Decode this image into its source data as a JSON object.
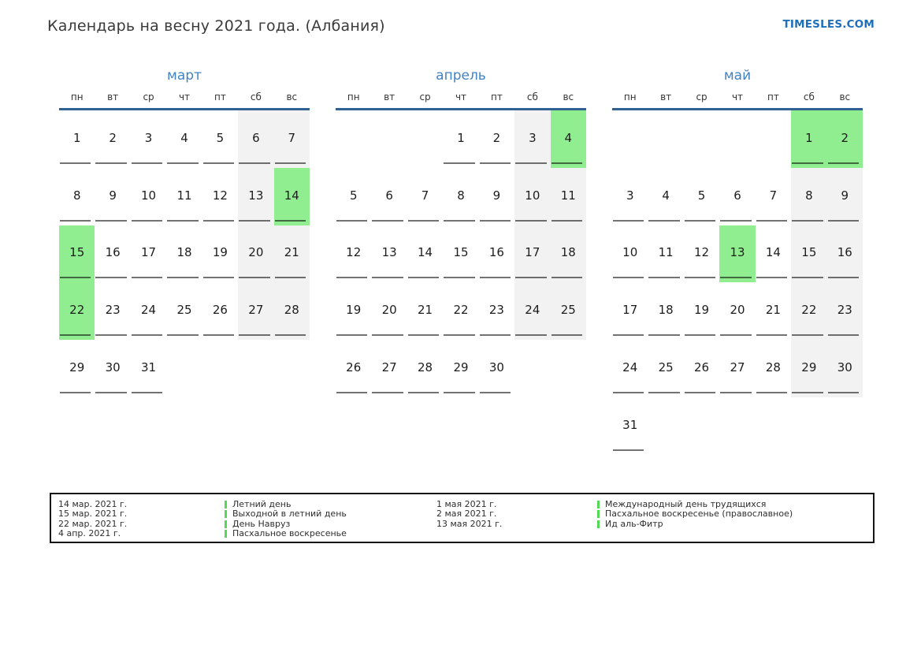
{
  "header": {
    "title": "Календарь на весну 2021 года. (Албания)",
    "site": "TIMESLES.COM"
  },
  "colors": {
    "holiday_green": "#90ee90",
    "weekend_gray": "#f2f2f2",
    "month_title_blue": "#4183c4",
    "header_line_blue": "#2f6292",
    "site_link_blue": "#1d6fbc",
    "legend_bar_green": "#55d855"
  },
  "weekdays": [
    "пн",
    "вт",
    "ср",
    "чт",
    "пт",
    "сб",
    "вс"
  ],
  "day_types": {
    "n": "workday",
    "w": "weekend",
    "h": "holiday"
  },
  "months": [
    {
      "name": "март",
      "weeks": [
        [
          {
            "d": "1",
            "t": "n"
          },
          {
            "d": "2",
            "t": "n"
          },
          {
            "d": "3",
            "t": "n"
          },
          {
            "d": "4",
            "t": "n"
          },
          {
            "d": "5",
            "t": "n"
          },
          {
            "d": "6",
            "t": "w"
          },
          {
            "d": "7",
            "t": "w"
          }
        ],
        [
          {
            "d": "8",
            "t": "n"
          },
          {
            "d": "9",
            "t": "n"
          },
          {
            "d": "10",
            "t": "n"
          },
          {
            "d": "11",
            "t": "n"
          },
          {
            "d": "12",
            "t": "n"
          },
          {
            "d": "13",
            "t": "w"
          },
          {
            "d": "14",
            "t": "h"
          }
        ],
        [
          {
            "d": "15",
            "t": "h"
          },
          {
            "d": "16",
            "t": "n"
          },
          {
            "d": "17",
            "t": "n"
          },
          {
            "d": "18",
            "t": "n"
          },
          {
            "d": "19",
            "t": "n"
          },
          {
            "d": "20",
            "t": "w"
          },
          {
            "d": "21",
            "t": "w"
          }
        ],
        [
          {
            "d": "22",
            "t": "h"
          },
          {
            "d": "23",
            "t": "n"
          },
          {
            "d": "24",
            "t": "n"
          },
          {
            "d": "25",
            "t": "n"
          },
          {
            "d": "26",
            "t": "n"
          },
          {
            "d": "27",
            "t": "w"
          },
          {
            "d": "28",
            "t": "w"
          }
        ],
        [
          {
            "d": "29",
            "t": "n"
          },
          {
            "d": "30",
            "t": "n"
          },
          {
            "d": "31",
            "t": "n"
          },
          null,
          null,
          null,
          null
        ]
      ]
    },
    {
      "name": "апрель",
      "weeks": [
        [
          null,
          null,
          null,
          {
            "d": "1",
            "t": "n"
          },
          {
            "d": "2",
            "t": "n"
          },
          {
            "d": "3",
            "t": "w"
          },
          {
            "d": "4",
            "t": "h"
          }
        ],
        [
          {
            "d": "5",
            "t": "n"
          },
          {
            "d": "6",
            "t": "n"
          },
          {
            "d": "7",
            "t": "n"
          },
          {
            "d": "8",
            "t": "n"
          },
          {
            "d": "9",
            "t": "n"
          },
          {
            "d": "10",
            "t": "w"
          },
          {
            "d": "11",
            "t": "w"
          }
        ],
        [
          {
            "d": "12",
            "t": "n"
          },
          {
            "d": "13",
            "t": "n"
          },
          {
            "d": "14",
            "t": "n"
          },
          {
            "d": "15",
            "t": "n"
          },
          {
            "d": "16",
            "t": "n"
          },
          {
            "d": "17",
            "t": "w"
          },
          {
            "d": "18",
            "t": "w"
          }
        ],
        [
          {
            "d": "19",
            "t": "n"
          },
          {
            "d": "20",
            "t": "n"
          },
          {
            "d": "21",
            "t": "n"
          },
          {
            "d": "22",
            "t": "n"
          },
          {
            "d": "23",
            "t": "n"
          },
          {
            "d": "24",
            "t": "w"
          },
          {
            "d": "25",
            "t": "w"
          }
        ],
        [
          {
            "d": "26",
            "t": "n"
          },
          {
            "d": "27",
            "t": "n"
          },
          {
            "d": "28",
            "t": "n"
          },
          {
            "d": "29",
            "t": "n"
          },
          {
            "d": "30",
            "t": "n"
          },
          null,
          null
        ]
      ]
    },
    {
      "name": "май",
      "weeks": [
        [
          null,
          null,
          null,
          null,
          null,
          {
            "d": "1",
            "t": "h"
          },
          {
            "d": "2",
            "t": "h"
          }
        ],
        [
          {
            "d": "3",
            "t": "n"
          },
          {
            "d": "4",
            "t": "n"
          },
          {
            "d": "5",
            "t": "n"
          },
          {
            "d": "6",
            "t": "n"
          },
          {
            "d": "7",
            "t": "n"
          },
          {
            "d": "8",
            "t": "w"
          },
          {
            "d": "9",
            "t": "w"
          }
        ],
        [
          {
            "d": "10",
            "t": "n"
          },
          {
            "d": "11",
            "t": "n"
          },
          {
            "d": "12",
            "t": "n"
          },
          {
            "d": "13",
            "t": "h"
          },
          {
            "d": "14",
            "t": "n"
          },
          {
            "d": "15",
            "t": "w"
          },
          {
            "d": "16",
            "t": "w"
          }
        ],
        [
          {
            "d": "17",
            "t": "n"
          },
          {
            "d": "18",
            "t": "n"
          },
          {
            "d": "19",
            "t": "n"
          },
          {
            "d": "20",
            "t": "n"
          },
          {
            "d": "21",
            "t": "n"
          },
          {
            "d": "22",
            "t": "w"
          },
          {
            "d": "23",
            "t": "w"
          }
        ],
        [
          {
            "d": "24",
            "t": "n"
          },
          {
            "d": "25",
            "t": "n"
          },
          {
            "d": "26",
            "t": "n"
          },
          {
            "d": "27",
            "t": "n"
          },
          {
            "d": "28",
            "t": "n"
          },
          {
            "d": "29",
            "t": "w"
          },
          {
            "d": "30",
            "t": "w"
          }
        ],
        [
          {
            "d": "31",
            "t": "n"
          },
          null,
          null,
          null,
          null,
          null,
          null
        ]
      ]
    }
  ],
  "legend": {
    "groups": [
      {
        "entries": [
          {
            "date": "14 мар. 2021 г.",
            "label": "Летний день"
          },
          {
            "date": "15 мар. 2021 г.",
            "label": "Выходной в летний день"
          },
          {
            "date": "22 мар. 2021 г.",
            "label": "День Навруз"
          },
          {
            "date": "4 апр. 2021 г.",
            "label": "Пасхальное воскресенье"
          }
        ]
      },
      {
        "entries": [
          {
            "date": "1 мая 2021 г.",
            "label": "Международный день трудящихся"
          },
          {
            "date": "2 мая 2021 г.",
            "label": "Пасхальное воскресенье (православное)"
          },
          {
            "date": "13 мая 2021 г.",
            "label": "Ид аль-Фитр"
          }
        ]
      }
    ]
  }
}
